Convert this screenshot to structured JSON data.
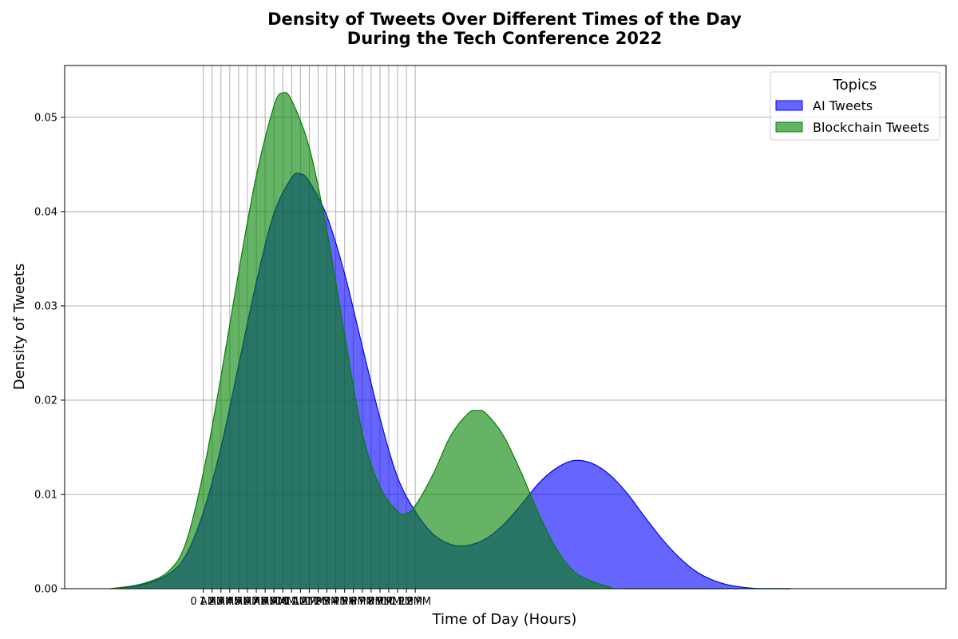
{
  "chart_data": {
    "type": "area",
    "title_lines": [
      "Density of Tweets Over Different Times of the Day",
      "During the Tech Conference 2022"
    ],
    "xlabel": "Time of Day (Hours)",
    "ylabel": "Density of Tweets",
    "xlim": [
      -15.7,
      84.1
    ],
    "ylim": [
      0,
      0.0555
    ],
    "yticks": [
      0.0,
      0.01,
      0.02,
      0.03,
      0.04,
      0.05
    ],
    "ytick_labels": [
      "0.00",
      "0.01",
      "0.02",
      "0.03",
      "0.04",
      "0.05"
    ],
    "xticks": [
      0,
      1,
      2,
      3,
      4,
      5,
      6,
      7,
      8,
      9,
      10,
      11,
      12,
      13,
      14,
      15,
      16,
      17,
      18,
      19,
      20,
      21,
      22,
      23,
      24
    ],
    "xtick_labels": [
      "0 AM",
      "1 AM",
      "2 AM",
      "3 AM",
      "4 AM",
      "5 AM",
      "6 AM",
      "7 AM",
      "8 AM",
      "9 AM",
      "10 AM",
      "11 AM",
      "12 PM",
      "1 PM",
      "2 PM",
      "3 PM",
      "4 PM",
      "5 PM",
      "6 PM",
      "7 PM",
      "8 PM",
      "9 PM",
      "10 PM",
      "11 PM",
      "12 PM"
    ],
    "grid": true,
    "legend": {
      "title": "Topics",
      "placement": "top-right"
    },
    "series": [
      {
        "name": "AI Tweets",
        "color": "#0000ff",
        "points": [
          [
            -10.5,
            0.0
          ],
          [
            -7,
            0.0004
          ],
          [
            -4,
            0.0015
          ],
          [
            -2,
            0.0035
          ],
          [
            0,
            0.0081
          ],
          [
            2,
            0.015
          ],
          [
            4,
            0.0237
          ],
          [
            6,
            0.0325
          ],
          [
            8,
            0.0398
          ],
          [
            10,
            0.0436
          ],
          [
            11,
            0.044
          ],
          [
            12,
            0.0432
          ],
          [
            14,
            0.0395
          ],
          [
            16,
            0.0334
          ],
          [
            18,
            0.0257
          ],
          [
            20,
            0.0181
          ],
          [
            22,
            0.0118
          ],
          [
            24,
            0.0082
          ],
          [
            26,
            0.0058
          ],
          [
            28,
            0.0047
          ],
          [
            30,
            0.0046
          ],
          [
            32,
            0.0053
          ],
          [
            34,
            0.0068
          ],
          [
            36,
            0.0089
          ],
          [
            38,
            0.0112
          ],
          [
            40,
            0.0128
          ],
          [
            42,
            0.0136
          ],
          [
            44,
            0.0133
          ],
          [
            46,
            0.0121
          ],
          [
            48,
            0.0101
          ],
          [
            50,
            0.0076
          ],
          [
            52,
            0.0052
          ],
          [
            54,
            0.0032
          ],
          [
            56,
            0.0017
          ],
          [
            58,
            0.0008
          ],
          [
            60,
            0.0003
          ],
          [
            63,
            0.0
          ],
          [
            66.5,
            0.0
          ]
        ]
      },
      {
        "name": "Blockchain Tweets",
        "color": "#008000",
        "points": [
          [
            -10.5,
            0.0
          ],
          [
            -7,
            0.0005
          ],
          [
            -4,
            0.0018
          ],
          [
            -2,
            0.0048
          ],
          [
            0,
            0.0123
          ],
          [
            2,
            0.0225
          ],
          [
            4,
            0.0336
          ],
          [
            6,
            0.0438
          ],
          [
            8,
            0.0512
          ],
          [
            9,
            0.0526
          ],
          [
            10,
            0.0518
          ],
          [
            12,
            0.0468
          ],
          [
            14,
            0.0379
          ],
          [
            16,
            0.0269
          ],
          [
            18,
            0.0165
          ],
          [
            20,
            0.0108
          ],
          [
            22,
            0.0082
          ],
          [
            23,
            0.008
          ],
          [
            24,
            0.0088
          ],
          [
            26,
            0.0121
          ],
          [
            28,
            0.0162
          ],
          [
            30,
            0.0186
          ],
          [
            31,
            0.0189
          ],
          [
            32,
            0.0186
          ],
          [
            34,
            0.0162
          ],
          [
            36,
            0.0123
          ],
          [
            38,
            0.0079
          ],
          [
            40,
            0.0042
          ],
          [
            42,
            0.0018
          ],
          [
            44,
            0.0008
          ],
          [
            46,
            0.0002
          ],
          [
            48,
            0.0
          ],
          [
            66.5,
            0.0
          ]
        ]
      }
    ]
  }
}
